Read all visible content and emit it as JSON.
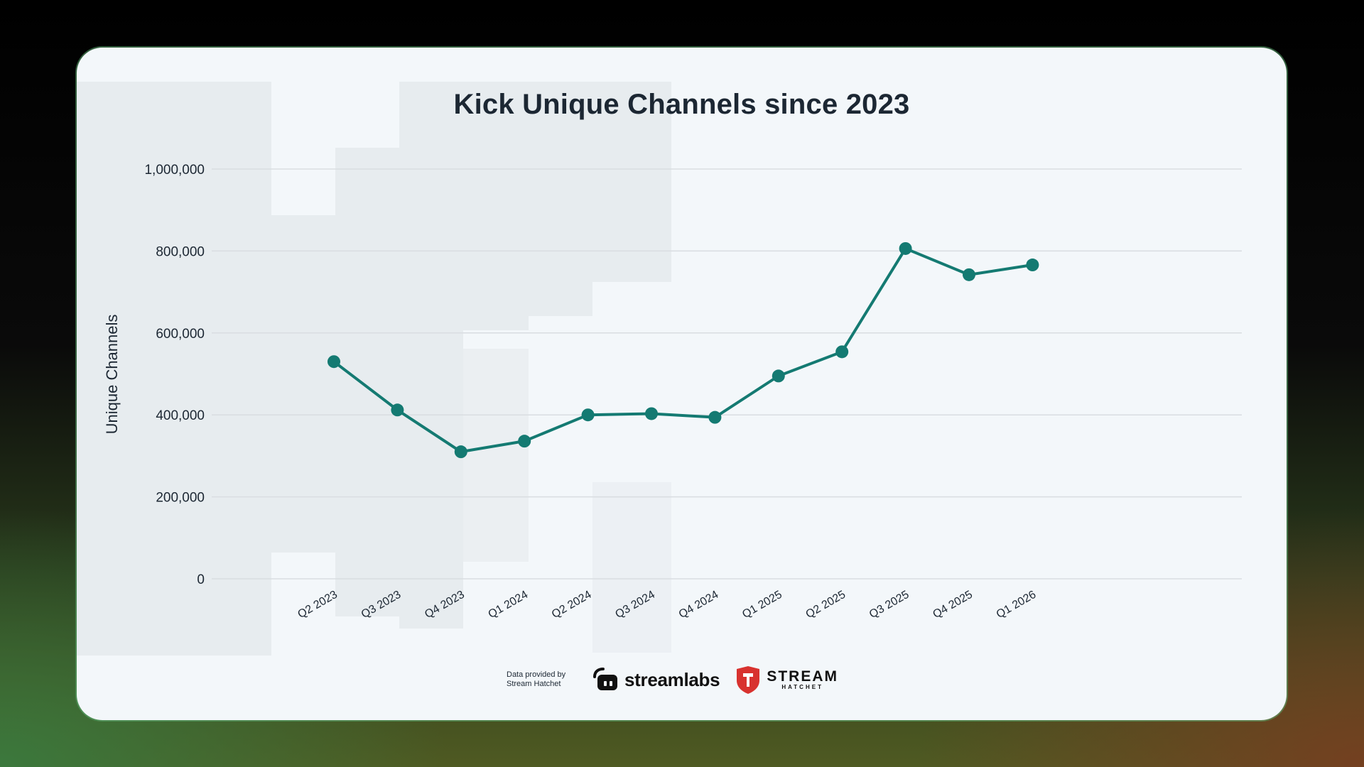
{
  "chart_data": {
    "type": "line",
    "title": "Kick Unique Channels since 2023",
    "ylabel": "Unique Channels",
    "xlabel": "",
    "categories": [
      "Q2 2023",
      "Q3 2023",
      "Q4 2023",
      "Q1 2024",
      "Q2 2024",
      "Q3 2024",
      "Q4 2024",
      "Q1 2025",
      "Q2 2025",
      "Q3 2025",
      "Q4 2025",
      "Q1 2026"
    ],
    "series": [
      {
        "values": [
          530000,
          412000,
          310000,
          336000,
          400000,
          403000,
          394000,
          495000,
          554000,
          806000,
          742000,
          766000
        ]
      }
    ],
    "ylim": [
      0,
      1000000
    ],
    "yticks": [
      0,
      200000,
      400000,
      600000,
      800000,
      1000000
    ],
    "ytick_labels": [
      "0",
      "200,000",
      "400,000",
      "600,000",
      "800,000",
      "1,000,000"
    ],
    "grid": true,
    "line_color": "#147a72"
  },
  "footer": {
    "provided_line1": "Data provided by",
    "provided_line2": "Stream Hatchet",
    "streamlabs": "streamlabs",
    "stream_hatchet_line1": "STREAM",
    "stream_hatchet_line2": "HATCHET"
  }
}
